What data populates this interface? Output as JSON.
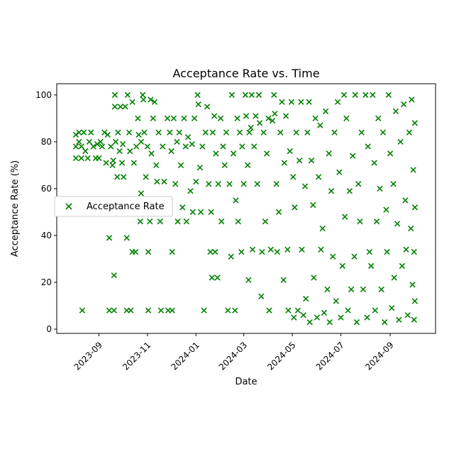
{
  "chart_data": {
    "type": "scatter",
    "title": "Acceptance Rate vs. Time",
    "xlabel": "Date",
    "ylabel": "Acceptance Rate (%)",
    "xlim": [
      "2023-07-10",
      "2024-10-28"
    ],
    "ylim": [
      -1.8,
      104.8
    ],
    "xticks": [
      {
        "date": "2023-09-01",
        "label": "2023-09"
      },
      {
        "date": "2023-11-01",
        "label": "2023-11"
      },
      {
        "date": "2024-01-01",
        "label": "2024-01"
      },
      {
        "date": "2024-03-01",
        "label": "2024-03"
      },
      {
        "date": "2024-05-01",
        "label": "2024-05"
      },
      {
        "date": "2024-07-01",
        "label": "2024-07"
      },
      {
        "date": "2024-09-01",
        "label": "2024-09"
      }
    ],
    "yticks": [
      0,
      20,
      40,
      60,
      80,
      100
    ],
    "grid": false,
    "legend": {
      "placement": "center-left"
    },
    "series": [
      {
        "name": "Acceptance Rate",
        "color": "#008000",
        "marker": "x",
        "points": [
          [
            "2023-08-03",
            73
          ],
          [
            "2023-08-03",
            78
          ],
          [
            "2023-08-03",
            83
          ],
          [
            "2023-08-07",
            80
          ],
          [
            "2023-08-07",
            84
          ],
          [
            "2023-08-10",
            73
          ],
          [
            "2023-08-10",
            78
          ],
          [
            "2023-08-11",
            8
          ],
          [
            "2023-08-13",
            84
          ],
          [
            "2023-08-15",
            76
          ],
          [
            "2023-08-18",
            73
          ],
          [
            "2023-08-20",
            80
          ],
          [
            "2023-08-22",
            84
          ],
          [
            "2023-08-25",
            78
          ],
          [
            "2023-08-28",
            73
          ],
          [
            "2023-08-30",
            79
          ],
          [
            "2023-09-01",
            73
          ],
          [
            "2023-09-03",
            80
          ],
          [
            "2023-09-05",
            78
          ],
          [
            "2023-09-08",
            84
          ],
          [
            "2023-09-10",
            71
          ],
          [
            "2023-09-12",
            83
          ],
          [
            "2023-09-14",
            39
          ],
          [
            "2023-09-14",
            8
          ],
          [
            "2023-09-16",
            78
          ],
          [
            "2023-09-18",
            70
          ],
          [
            "2023-09-19",
            72
          ],
          [
            "2023-09-20",
            23
          ],
          [
            "2023-09-20",
            8
          ],
          [
            "2023-09-21",
            100
          ],
          [
            "2023-09-21",
            95
          ],
          [
            "2023-09-22",
            80
          ],
          [
            "2023-09-24",
            65
          ],
          [
            "2023-09-25",
            84
          ],
          [
            "2023-09-27",
            76
          ],
          [
            "2023-09-28",
            95
          ],
          [
            "2023-09-30",
            71
          ],
          [
            "2023-10-01",
            79
          ],
          [
            "2023-10-02",
            65
          ],
          [
            "2023-10-04",
            95
          ],
          [
            "2023-10-06",
            39
          ],
          [
            "2023-10-06",
            8
          ],
          [
            "2023-10-07",
            100
          ],
          [
            "2023-10-09",
            84
          ],
          [
            "2023-10-10",
            76
          ],
          [
            "2023-10-11",
            8
          ],
          [
            "2023-10-13",
            97
          ],
          [
            "2023-10-13",
            33
          ],
          [
            "2023-10-15",
            71
          ],
          [
            "2023-10-17",
            33
          ],
          [
            "2023-10-18",
            78
          ],
          [
            "2023-10-20",
            90
          ],
          [
            "2023-10-21",
            83
          ],
          [
            "2023-10-23",
            46
          ],
          [
            "2023-10-24",
            58
          ],
          [
            "2023-10-24",
            80
          ],
          [
            "2023-10-26",
            100
          ],
          [
            "2023-10-27",
            98
          ],
          [
            "2023-10-28",
            84
          ],
          [
            "2023-10-30",
            65
          ],
          [
            "2023-11-01",
            78
          ],
          [
            "2023-11-02",
            33
          ],
          [
            "2023-11-02",
            8
          ],
          [
            "2023-11-04",
            46
          ],
          [
            "2023-11-05",
            98
          ],
          [
            "2023-11-06",
            75
          ],
          [
            "2023-11-08",
            90
          ],
          [
            "2023-11-10",
            97
          ],
          [
            "2023-11-12",
            70
          ],
          [
            "2023-11-13",
            63
          ],
          [
            "2023-11-15",
            84
          ],
          [
            "2023-11-17",
            46
          ],
          [
            "2023-11-18",
            8
          ],
          [
            "2023-11-20",
            78
          ],
          [
            "2023-11-22",
            63
          ],
          [
            "2023-11-24",
            52
          ],
          [
            "2023-11-26",
            90
          ],
          [
            "2023-11-27",
            8
          ],
          [
            "2023-11-29",
            84
          ],
          [
            "2023-12-01",
            76
          ],
          [
            "2023-12-02",
            33
          ],
          [
            "2023-12-02",
            8
          ],
          [
            "2023-12-04",
            90
          ],
          [
            "2023-12-06",
            62
          ],
          [
            "2023-12-08",
            80
          ],
          [
            "2023-12-09",
            46
          ],
          [
            "2023-12-11",
            84
          ],
          [
            "2023-12-13",
            70
          ],
          [
            "2023-12-15",
            52
          ],
          [
            "2023-12-17",
            90
          ],
          [
            "2023-12-19",
            78
          ],
          [
            "2023-12-20",
            46
          ],
          [
            "2023-12-22",
            82
          ],
          [
            "2023-12-25",
            59
          ],
          [
            "2023-12-27",
            79
          ],
          [
            "2023-12-28",
            50
          ],
          [
            "2023-12-30",
            90
          ],
          [
            "2024-01-01",
            63
          ],
          [
            "2024-01-03",
            100
          ],
          [
            "2024-01-04",
            96
          ],
          [
            "2024-01-06",
            69
          ],
          [
            "2024-01-07",
            50
          ],
          [
            "2024-01-09",
            78
          ],
          [
            "2024-01-11",
            8
          ],
          [
            "2024-01-13",
            84
          ],
          [
            "2024-01-15",
            95
          ],
          [
            "2024-01-17",
            62
          ],
          [
            "2024-01-19",
            33
          ],
          [
            "2024-01-20",
            50
          ],
          [
            "2024-01-21",
            22
          ],
          [
            "2024-01-22",
            84
          ],
          [
            "2024-01-24",
            91
          ],
          [
            "2024-01-25",
            33
          ],
          [
            "2024-01-26",
            75
          ],
          [
            "2024-01-28",
            22
          ],
          [
            "2024-01-29",
            62
          ],
          [
            "2024-02-01",
            90
          ],
          [
            "2024-02-02",
            46
          ],
          [
            "2024-02-04",
            78
          ],
          [
            "2024-02-06",
            70
          ],
          [
            "2024-02-08",
            84
          ],
          [
            "2024-02-10",
            8
          ],
          [
            "2024-02-12",
            62
          ],
          [
            "2024-02-14",
            31
          ],
          [
            "2024-02-15",
            100
          ],
          [
            "2024-02-17",
            75
          ],
          [
            "2024-02-19",
            8
          ],
          [
            "2024-02-20",
            55
          ],
          [
            "2024-02-22",
            90
          ],
          [
            "2024-02-23",
            46
          ],
          [
            "2024-02-25",
            84
          ],
          [
            "2024-02-27",
            33
          ],
          [
            "2024-02-28",
            78
          ],
          [
            "2024-03-01",
            62
          ],
          [
            "2024-03-03",
            100
          ],
          [
            "2024-03-04",
            91
          ],
          [
            "2024-03-06",
            70
          ],
          [
            "2024-03-07",
            21
          ],
          [
            "2024-03-08",
            84
          ],
          [
            "2024-03-10",
            86
          ],
          [
            "2024-03-11",
            100
          ],
          [
            "2024-03-12",
            34
          ],
          [
            "2024-03-14",
            78
          ],
          [
            "2024-03-16",
            91
          ],
          [
            "2024-03-18",
            62
          ],
          [
            "2024-03-20",
            100
          ],
          [
            "2024-03-21",
            88
          ],
          [
            "2024-03-23",
            14
          ],
          [
            "2024-03-24",
            33
          ],
          [
            "2024-03-26",
            84
          ],
          [
            "2024-03-28",
            46
          ],
          [
            "2024-03-30",
            75
          ],
          [
            "2024-04-01",
            90
          ],
          [
            "2024-04-02",
            8
          ],
          [
            "2024-04-04",
            34
          ],
          [
            "2024-04-06",
            89
          ],
          [
            "2024-04-08",
            100
          ],
          [
            "2024-04-09",
            92
          ],
          [
            "2024-04-11",
            62
          ],
          [
            "2024-04-12",
            33
          ],
          [
            "2024-04-14",
            50
          ],
          [
            "2024-04-16",
            84
          ],
          [
            "2024-04-18",
            97
          ],
          [
            "2024-04-20",
            21
          ],
          [
            "2024-04-21",
            71
          ],
          [
            "2024-04-23",
            91
          ],
          [
            "2024-04-25",
            34
          ],
          [
            "2024-04-26",
            8
          ],
          [
            "2024-04-28",
            76
          ],
          [
            "2024-04-30",
            97
          ],
          [
            "2024-05-02",
            65
          ],
          [
            "2024-05-03",
            5
          ],
          [
            "2024-05-04",
            52
          ],
          [
            "2024-05-06",
            84
          ],
          [
            "2024-05-08",
            8
          ],
          [
            "2024-05-10",
            72
          ],
          [
            "2024-05-12",
            97
          ],
          [
            "2024-05-13",
            34
          ],
          [
            "2024-05-15",
            6
          ],
          [
            "2024-05-17",
            61
          ],
          [
            "2024-05-18",
            13
          ],
          [
            "2024-05-20",
            84
          ],
          [
            "2024-05-22",
            97
          ],
          [
            "2024-05-23",
            3
          ],
          [
            "2024-05-25",
            72
          ],
          [
            "2024-05-27",
            53
          ],
          [
            "2024-05-28",
            22
          ],
          [
            "2024-05-30",
            90
          ],
          [
            "2024-06-01",
            5
          ],
          [
            "2024-06-03",
            65
          ],
          [
            "2024-06-05",
            87
          ],
          [
            "2024-06-06",
            34
          ],
          [
            "2024-06-08",
            43
          ],
          [
            "2024-06-10",
            7
          ],
          [
            "2024-06-12",
            93
          ],
          [
            "2024-06-14",
            17
          ],
          [
            "2024-06-16",
            75
          ],
          [
            "2024-06-17",
            3
          ],
          [
            "2024-06-19",
            59
          ],
          [
            "2024-06-21",
            31
          ],
          [
            "2024-06-23",
            84
          ],
          [
            "2024-06-25",
            12
          ],
          [
            "2024-06-27",
            97
          ],
          [
            "2024-06-29",
            67
          ],
          [
            "2024-07-01",
            5
          ],
          [
            "2024-07-03",
            27
          ],
          [
            "2024-07-05",
            100
          ],
          [
            "2024-07-06",
            48
          ],
          [
            "2024-07-08",
            90
          ],
          [
            "2024-07-10",
            8
          ],
          [
            "2024-07-12",
            59
          ],
          [
            "2024-07-14",
            17
          ],
          [
            "2024-07-16",
            74
          ],
          [
            "2024-07-18",
            31
          ],
          [
            "2024-07-19",
            100
          ],
          [
            "2024-07-21",
            3
          ],
          [
            "2024-07-23",
            62
          ],
          [
            "2024-07-25",
            46
          ],
          [
            "2024-07-27",
            84
          ],
          [
            "2024-07-29",
            17
          ],
          [
            "2024-08-01",
            100
          ],
          [
            "2024-08-03",
            5
          ],
          [
            "2024-08-04",
            78
          ],
          [
            "2024-08-06",
            33
          ],
          [
            "2024-08-08",
            27
          ],
          [
            "2024-08-10",
            100
          ],
          [
            "2024-08-12",
            71
          ],
          [
            "2024-08-13",
            8
          ],
          [
            "2024-08-15",
            46
          ],
          [
            "2024-08-17",
            90
          ],
          [
            "2024-08-19",
            60
          ],
          [
            "2024-08-21",
            17
          ],
          [
            "2024-08-23",
            84
          ],
          [
            "2024-08-25",
            3
          ],
          [
            "2024-08-27",
            51
          ],
          [
            "2024-08-28",
            33
          ],
          [
            "2024-08-30",
            100
          ],
          [
            "2024-09-01",
            75
          ],
          [
            "2024-09-03",
            9
          ],
          [
            "2024-09-05",
            62
          ],
          [
            "2024-09-06",
            22
          ],
          [
            "2024-09-08",
            93
          ],
          [
            "2024-09-10",
            45
          ],
          [
            "2024-09-12",
            4
          ],
          [
            "2024-09-14",
            80
          ],
          [
            "2024-09-16",
            27
          ],
          [
            "2024-09-18",
            96
          ],
          [
            "2024-09-20",
            55
          ],
          [
            "2024-09-21",
            34
          ],
          [
            "2024-09-23",
            6
          ],
          [
            "2024-09-25",
            84
          ],
          [
            "2024-09-27",
            43
          ],
          [
            "2024-09-28",
            98
          ],
          [
            "2024-09-29",
            19
          ],
          [
            "2024-09-30",
            68
          ],
          [
            "2024-10-01",
            4
          ],
          [
            "2024-10-01",
            33
          ],
          [
            "2024-10-02",
            88
          ],
          [
            "2024-10-02",
            52
          ],
          [
            "2024-10-02",
            12
          ]
        ]
      }
    ]
  }
}
